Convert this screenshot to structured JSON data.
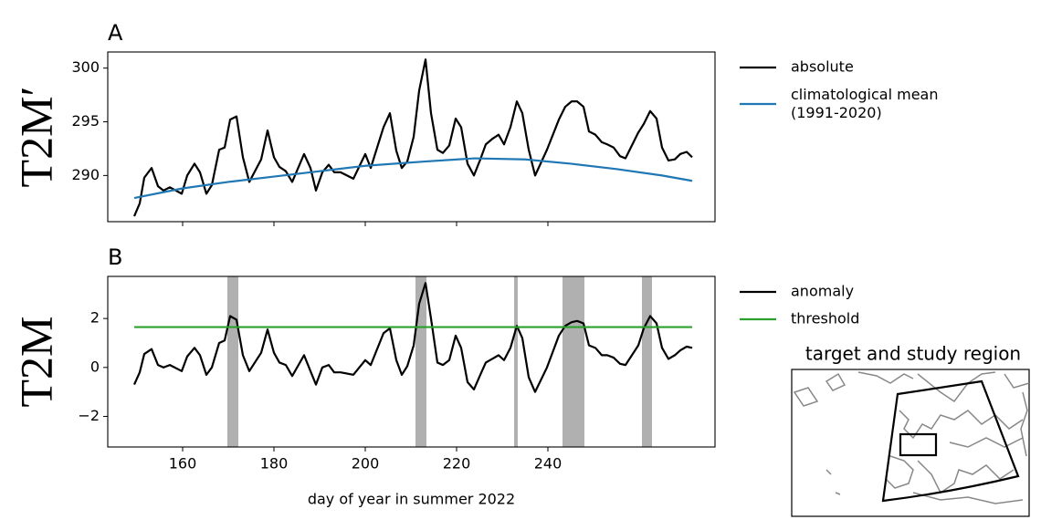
{
  "chart_data": [
    {
      "type": "line",
      "title": "A",
      "ylabel": "T2M′",
      "xlim": [
        143.6,
        276.6
      ],
      "xticks": [
        160,
        180,
        200,
        220,
        240
      ],
      "xtick_labels": false,
      "ylim": [
        285.7,
        301.5
      ],
      "yticks": [
        290,
        295,
        300
      ],
      "legend": "outside right",
      "series": [
        {
          "name": "absolute",
          "color": "#000000",
          "x": [
            149.4,
            150.6,
            151.6,
            153.2,
            154.6,
            155.8,
            157.2,
            159.8,
            161,
            162.6,
            163.8,
            165.2,
            166.4,
            168,
            169.2,
            170.4,
            171.8,
            173.2,
            174.6,
            177.2,
            178.6,
            180,
            181.2,
            182.6,
            184,
            186.6,
            188,
            189.2,
            190.6,
            192,
            193.2,
            194.6,
            197.4,
            200,
            201.2,
            204,
            205.4,
            206.8,
            208,
            209.2,
            210.6,
            211.8,
            213.2,
            214.4,
            215.8,
            217,
            218.4,
            219.8,
            221,
            222.4,
            223.8,
            225.2,
            226.4,
            227.8,
            229.2,
            230.4,
            231.8,
            233.2,
            234.4,
            235.8,
            237.2,
            239.8,
            242.4,
            243.8,
            245.2,
            246.4,
            247.8,
            249,
            250.4,
            251.8,
            253,
            254.4,
            255.8,
            257,
            259.8,
            261,
            262.4,
            263.8,
            265,
            266.4,
            267.8,
            269,
            270.4,
            271.6
          ],
          "values": [
            286.2,
            287.4,
            289.8,
            290.7,
            289.0,
            288.6,
            288.9,
            288.3,
            290.0,
            291.1,
            290.3,
            288.3,
            289.1,
            292.4,
            292.6,
            295.2,
            295.5,
            291.7,
            289.4,
            291.5,
            294.2,
            291.7,
            290.8,
            290.4,
            289.4,
            292.0,
            290.7,
            288.6,
            290.3,
            291.0,
            290.3,
            290.3,
            289.7,
            292.0,
            290.7,
            294.5,
            295.8,
            292.3,
            290.7,
            291.3,
            293.6,
            297.9,
            300.8,
            295.8,
            292.4,
            292.1,
            292.8,
            295.3,
            294.5,
            291.1,
            290.0,
            291.5,
            292.9,
            293.4,
            293.8,
            292.9,
            294.5,
            296.9,
            295.8,
            292.4,
            290.0,
            292.4,
            295.2,
            296.4,
            296.9,
            296.9,
            296.4,
            294.1,
            293.8,
            293.1,
            292.9,
            292.6,
            291.8,
            291.6,
            294.0,
            294.8,
            296.0,
            295.3,
            292.6,
            291.4,
            291.5,
            292.0,
            292.2,
            291.7
          ]
        },
        {
          "name": "climatological mean\n(1991-2020)",
          "color": "#1f77b4",
          "x": [
            149.4,
            160,
            170,
            180,
            190,
            200,
            213,
            224,
            235,
            245,
            255,
            265,
            271.6
          ],
          "values": [
            287.9,
            288.8,
            289.4,
            289.9,
            290.4,
            290.9,
            291.3,
            291.6,
            291.5,
            291.1,
            290.6,
            290.0,
            289.5
          ]
        }
      ]
    },
    {
      "type": "line",
      "title": "B",
      "ylabel": "T2M",
      "xlabel": "day of year in summer 2022",
      "xlim": [
        143.6,
        276.6
      ],
      "xticks": [
        160,
        180,
        200,
        220,
        240
      ],
      "ylim": [
        -3.25,
        3.72
      ],
      "yticks": [
        {
          "value": -2,
          "label": "−2"
        },
        0,
        2
      ],
      "legend": "outside right",
      "shaded_spans": [
        [
          169.8,
          172.2
        ],
        [
          211,
          213.4
        ],
        [
          232.6,
          233.4
        ],
        [
          243.2,
          248
        ],
        [
          260.6,
          262.8
        ]
      ],
      "span_color": "#b0b0b0",
      "series": [
        {
          "name": "anomaly",
          "color": "#000000",
          "x": [
            149.4,
            150.6,
            151.6,
            153.2,
            154.6,
            155.8,
            157.2,
            159.8,
            161,
            162.6,
            163.8,
            165.2,
            166.4,
            168,
            169.2,
            170.4,
            171.8,
            173.2,
            174.6,
            177.2,
            178.6,
            180,
            181.2,
            182.6,
            184,
            186.6,
            188,
            189.2,
            190.6,
            192,
            193.2,
            194.6,
            197.4,
            200,
            201.2,
            204,
            205.4,
            206.8,
            208,
            209.2,
            210.6,
            211.8,
            213.2,
            214.4,
            215.8,
            217,
            218.4,
            219.8,
            221,
            222.4,
            223.8,
            225.2,
            226.4,
            227.8,
            229.2,
            230.4,
            231.8,
            233.2,
            234.4,
            235.8,
            237.2,
            239.8,
            242.4,
            243.8,
            245.2,
            246.4,
            247.8,
            249,
            250.4,
            251.8,
            253,
            254.4,
            255.8,
            257,
            259.8,
            261,
            262.4,
            263.8,
            265,
            266.4,
            267.8,
            269,
            270.4,
            271.6
          ],
          "values": [
            -0.7,
            -0.2,
            0.55,
            0.75,
            0.1,
            0.0,
            0.1,
            -0.15,
            0.45,
            0.8,
            0.5,
            -0.3,
            0.0,
            1.0,
            1.1,
            2.1,
            1.95,
            0.5,
            -0.15,
            0.6,
            1.55,
            0.6,
            0.2,
            0.1,
            -0.35,
            0.5,
            -0.15,
            -0.7,
            0.0,
            0.1,
            -0.2,
            -0.2,
            -0.3,
            0.3,
            0.1,
            1.4,
            1.6,
            0.3,
            -0.3,
            0.05,
            0.9,
            2.6,
            3.45,
            2.0,
            0.2,
            0.1,
            0.3,
            1.3,
            0.8,
            -0.6,
            -0.9,
            -0.3,
            0.2,
            0.35,
            0.5,
            0.3,
            0.8,
            1.7,
            1.2,
            -0.4,
            -1.0,
            0.0,
            1.3,
            1.7,
            1.85,
            1.9,
            1.8,
            0.9,
            0.8,
            0.5,
            0.5,
            0.4,
            0.15,
            0.1,
            0.9,
            1.6,
            2.1,
            1.8,
            0.8,
            0.35,
            0.5,
            0.7,
            0.85,
            0.8
          ]
        },
        {
          "name": "threshold",
          "color": "#2ca02c",
          "x": [
            149.4,
            271.6
          ],
          "values": [
            1.65,
            1.65
          ]
        }
      ]
    },
    {
      "type": "map",
      "title": "target and study region"
    }
  ]
}
